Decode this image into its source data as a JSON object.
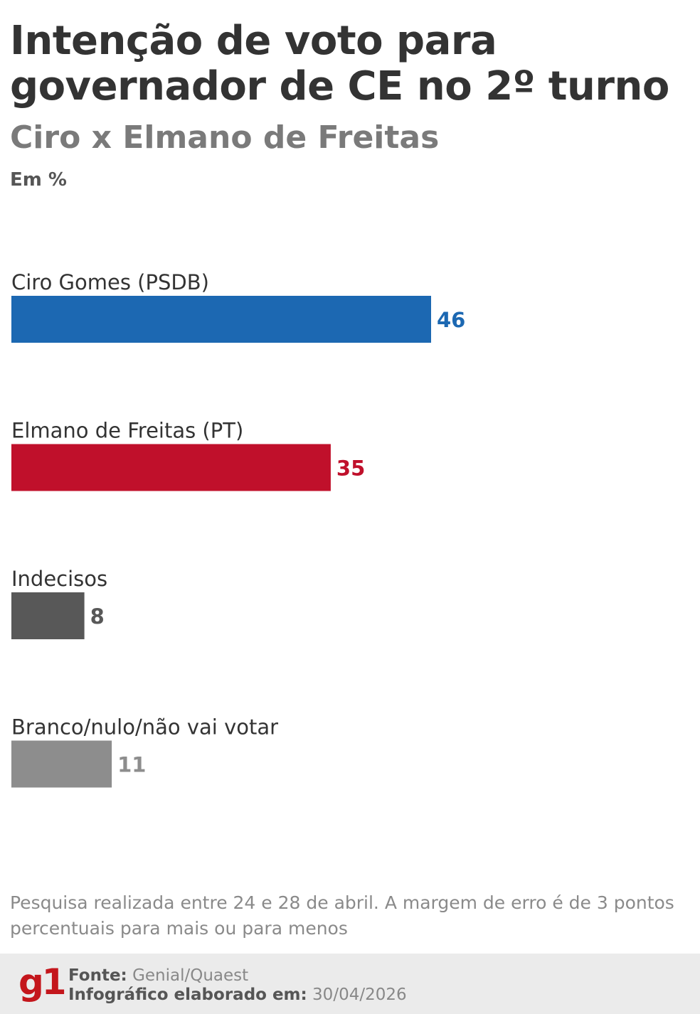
{
  "title_lines": [
    "Intenção de voto para",
    "governador de CE no 2º turno"
  ],
  "subtitle": "Ciro x Elmano de Freitas",
  "unit": "Em %",
  "colors": {
    "series": [
      "#1c68b2",
      "#c0102b",
      "#585858",
      "#8d8d8d"
    ]
  },
  "chart_data": {
    "type": "bar",
    "orientation": "horizontal",
    "categories": [
      "Ciro Gomes (PSDB)",
      "Elmano de Freitas (PT)",
      "Indecisos",
      "Branco/nulo/não vai votar"
    ],
    "values": [
      46,
      35,
      8,
      11
    ],
    "xlim": [
      0,
      46
    ],
    "grid": false,
    "legend": false
  },
  "note": "Pesquisa realizada entre 24 e 28 de abril. A margem de erro é de 3 pontos percentuais para mais ou para menos",
  "footer": {
    "logo": "g1",
    "source_label": "Fonte:",
    "source_value": "Genial/Quaest",
    "date_label": "Infográfico elaborado em:",
    "date_value": "30/04/2026"
  }
}
